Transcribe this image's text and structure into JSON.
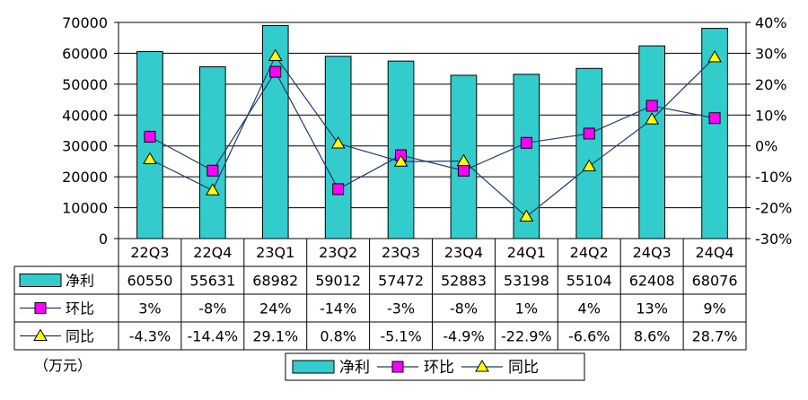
{
  "chart_data": {
    "type": "bar",
    "categories": [
      "22Q3",
      "22Q4",
      "23Q1",
      "23Q2",
      "23Q3",
      "23Q4",
      "24Q1",
      "24Q2",
      "24Q3",
      "24Q4"
    ],
    "series": [
      {
        "name": "净利",
        "kind": "bar",
        "axis": "left",
        "color": "#33CCCC",
        "values": [
          60550,
          55631,
          68982,
          59012,
          57472,
          52883,
          53198,
          55104,
          62408,
          68076
        ],
        "labels": [
          "60550",
          "55631",
          "68982",
          "59012",
          "57472",
          "52883",
          "53198",
          "55104",
          "62408",
          "68076"
        ]
      },
      {
        "name": "环比",
        "kind": "line",
        "axis": "right",
        "marker": "square",
        "color": "#FF00FF",
        "values": [
          3,
          -8,
          24,
          -14,
          -3,
          -8,
          1,
          4,
          13,
          9
        ],
        "labels": [
          "3%",
          "-8%",
          "24%",
          "-14%",
          "-3%",
          "-8%",
          "1%",
          "4%",
          "13%",
          "9%"
        ]
      },
      {
        "name": "同比",
        "kind": "line",
        "axis": "right",
        "marker": "triangle",
        "color": "#FFFF00",
        "values": [
          -4.3,
          -14.4,
          29.1,
          0.8,
          -5.1,
          -4.9,
          -22.9,
          -6.6,
          8.6,
          28.7
        ],
        "labels": [
          "-4.3%",
          "-14.4%",
          "29.1%",
          "0.8%",
          "-5.1%",
          "-4.9%",
          "-22.9%",
          "-6.6%",
          "8.6%",
          "28.7%"
        ]
      }
    ],
    "y_left": {
      "min": 0,
      "max": 70000,
      "step": 10000,
      "ticks": [
        "0",
        "10000",
        "20000",
        "30000",
        "40000",
        "50000",
        "60000",
        "70000"
      ]
    },
    "y_right": {
      "min": -30,
      "max": 40,
      "step": 10,
      "ticks": [
        "-30%",
        "-20%",
        "-10%",
        "0%",
        "10%",
        "20%",
        "30%",
        "40%"
      ]
    },
    "unit_note": "（万元）",
    "grid": true,
    "legend_position": "bottom",
    "line_color": "#1F3A6B"
  }
}
